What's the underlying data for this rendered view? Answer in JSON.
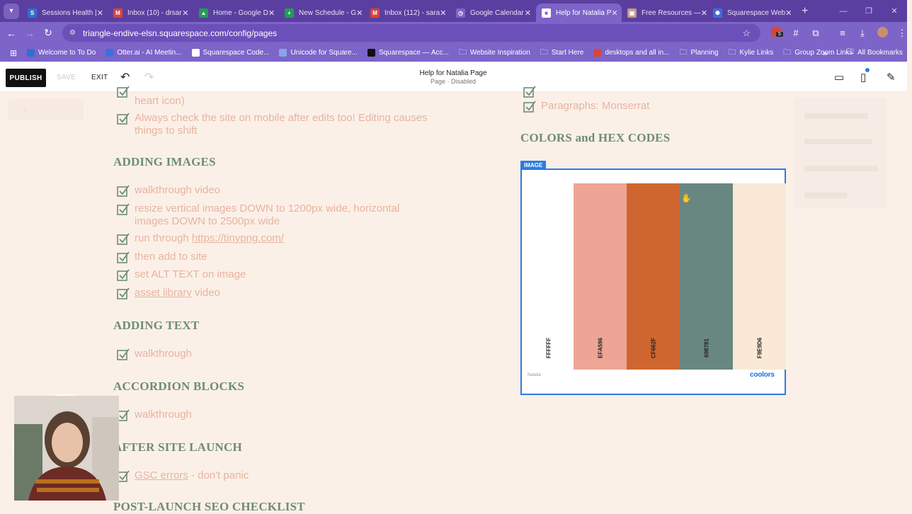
{
  "browser": {
    "tabs": [
      {
        "title": "Sessions Health |",
        "favicon_color": "#2f6fd1",
        "favicon_glyph": "S",
        "active": false
      },
      {
        "title": "Inbox (10) - drsar",
        "favicon_color": "#d8453b",
        "favicon_glyph": "M",
        "active": false
      },
      {
        "title": "Home - Google D",
        "favicon_color": "#1e9e55",
        "favicon_glyph": "▲",
        "active": false
      },
      {
        "title": "New Schedule - G",
        "favicon_color": "#1e9e55",
        "favicon_glyph": "+",
        "active": false
      },
      {
        "title": "Inbox (112) - sara",
        "favicon_color": "#d8453b",
        "favicon_glyph": "M",
        "active": false
      },
      {
        "title": "Google Calendar",
        "favicon_color": "#7d64c8",
        "favicon_glyph": "◷",
        "active": false
      },
      {
        "title": "Help for Natalia P",
        "favicon_color": "#ffffff",
        "favicon_glyph": "■",
        "active": true
      },
      {
        "title": "Free Resources —",
        "favicon_color": "#c79a86",
        "favicon_glyph": "▣",
        "active": false
      },
      {
        "title": "Squarespace Web",
        "favicon_color": "#3b6ee0",
        "favicon_glyph": "✺",
        "active": false
      }
    ],
    "url": "triangle-endive-elsn.squarespace.com/config/pages",
    "extension_badge": "5",
    "bookmarks": [
      {
        "label": "Welcome to To Do",
        "icon": "pen-icon",
        "color": "#2f6fd1"
      },
      {
        "label": "Otter.ai - AI Meetin...",
        "icon": "otter-icon",
        "color": "#3b6ee0"
      },
      {
        "label": "Squarespace Code...",
        "icon": "diamond-icon",
        "color": "#ffffff"
      },
      {
        "label": "Unicode for Square...",
        "icon": "unicode-icon",
        "color": "#8aa4e8"
      },
      {
        "label": "Squarespace — Acc...",
        "icon": "squarespace-icon",
        "color": "#111111"
      },
      {
        "label": "Website Inspiration",
        "icon": "folder-icon",
        "color": "#ffffff"
      },
      {
        "label": "Start Here",
        "icon": "folder-icon",
        "color": "#ffffff"
      },
      {
        "label": "desktops and all in...",
        "icon": "l-icon",
        "color": "#d8453b"
      },
      {
        "label": "Planning",
        "icon": "folder-icon",
        "color": "#ffffff"
      },
      {
        "label": "Kylie Links",
        "icon": "folder-icon",
        "color": "#ffffff"
      },
      {
        "label": "Group Zoom Links",
        "icon": "folder-icon",
        "color": "#ffffff"
      }
    ],
    "all_bookmarks": "All Bookmarks",
    "more_bookmarks": "»"
  },
  "editor": {
    "publish": "PUBLISH",
    "save": "SAVE",
    "exit": "EXIT",
    "page_title": "Help for Natalia Page",
    "page_status": "Page · Disabled"
  },
  "content": {
    "top_partial": "heart icon)",
    "mobile_note": [
      "Always check the site on mobile after edits too! Editing causes",
      "things to shift"
    ],
    "sections": {
      "adding_images": {
        "heading": "ADDING IMAGES",
        "items": [
          {
            "text": "walkthrough video"
          },
          {
            "text": [
              "resize vertical images DOWN to 1200px wide, horizontal",
              "images DOWN to 2500px wide"
            ]
          },
          {
            "prefix": "run through ",
            "link": "https://tinypng.com/"
          },
          {
            "text": "then add to site"
          },
          {
            "text": "set ALT TEXT on image"
          },
          {
            "link": "asset library",
            "suffix": " video"
          }
        ]
      },
      "adding_text": {
        "heading": "ADDING TEXT",
        "items": [
          "walkthrough"
        ]
      },
      "accordion": {
        "heading": "ACCORDION BLOCKS",
        "items": [
          "walkthrough"
        ]
      },
      "after_launch": {
        "heading": "AFTER SITE LAUNCH",
        "link": "GSC errors",
        "suffix": " - don't panic"
      },
      "post_launch": {
        "heading": "POST-LAUNCH SEO CHECKLIST"
      }
    },
    "right": {
      "paragraphs_font": "Paragraphs: Monserrat",
      "colors_heading": "COLORS and HEX CODES",
      "image_label": "IMAGE",
      "palette": [
        {
          "hex": "FFFFFF",
          "color": "#FFFFFF"
        },
        {
          "hex": "EFA596",
          "color": "#EFA596"
        },
        {
          "hex": "CF662F",
          "color": "#CF662F"
        },
        {
          "hex": "698781",
          "color": "#698781"
        },
        {
          "hex": "F9E9D6",
          "color": "#F9E9D6"
        }
      ],
      "palette_author": "Natalia",
      "palette_brand": "coolors"
    }
  },
  "colors": {
    "browser_accent": "#7d64c8",
    "text_peach": "#e7b3a0",
    "heading_green": "#6e8c78",
    "selection_blue": "#2a7de1"
  }
}
